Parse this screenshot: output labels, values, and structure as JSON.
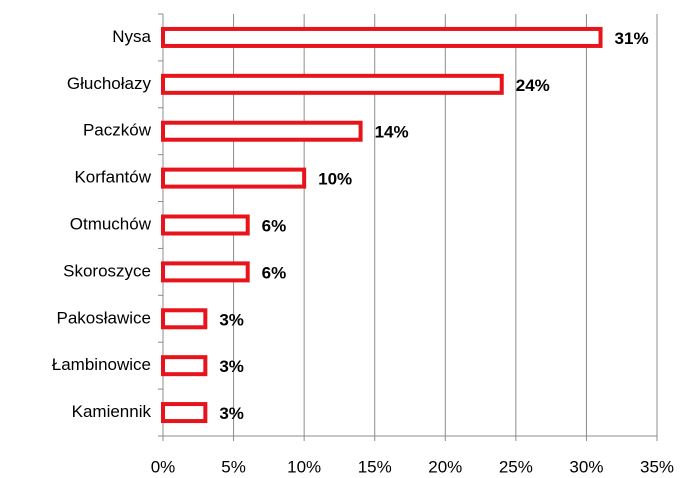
{
  "chart_data": {
    "type": "barh",
    "categories": [
      "Nysa",
      "Głuchołazy",
      "Paczków",
      "Korfantów",
      "Otmuchów",
      "Skoroszyce",
      "Pakosławice",
      "Łambinowice",
      "Kamiennik"
    ],
    "values": [
      31,
      24,
      14,
      10,
      6,
      6,
      3,
      3,
      3
    ],
    "value_labels": [
      "31%",
      "24%",
      "14%",
      "10%",
      "6%",
      "6%",
      "3%",
      "3%",
      "3%"
    ],
    "color": "#e8141b",
    "xlim": [
      0,
      35
    ],
    "xticks": [
      {
        "value": 0,
        "label": "0%"
      },
      {
        "value": 5,
        "label": "5%"
      },
      {
        "value": 10,
        "label": "10%"
      },
      {
        "value": 15,
        "label": "15%"
      },
      {
        "value": 20,
        "label": "20%"
      },
      {
        "value": 25,
        "label": "25%"
      },
      {
        "value": 30,
        "label": "30%"
      },
      {
        "value": 35,
        "label": "35%"
      }
    ],
    "grid": true
  }
}
